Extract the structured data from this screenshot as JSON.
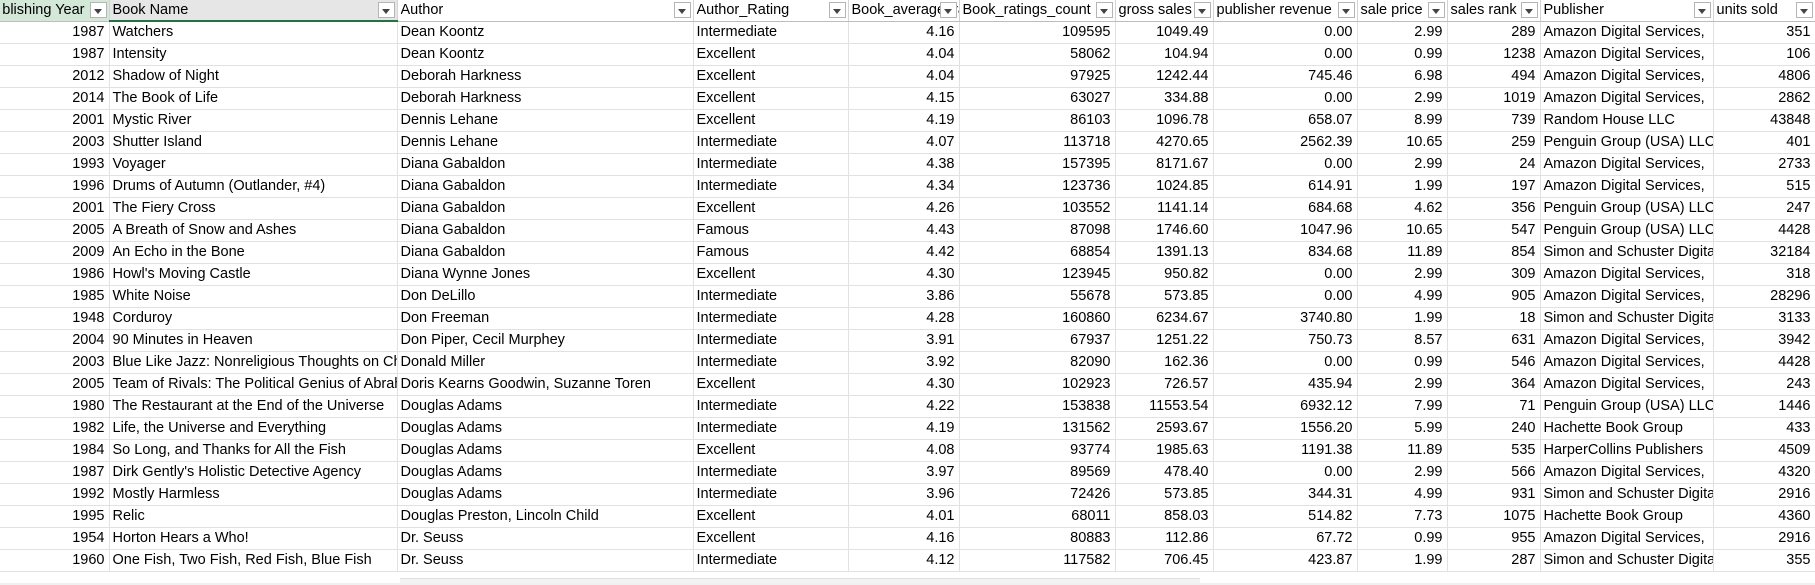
{
  "headers": [
    {
      "label": "Publishing Year",
      "align": "right",
      "selected": true
    },
    {
      "label": "Book Name",
      "align": "left",
      "selected": true,
      "active": true
    },
    {
      "label": "Author",
      "align": "left"
    },
    {
      "label": "Author_Rating",
      "align": "left"
    },
    {
      "label": "Book_average_rating",
      "align": "left"
    },
    {
      "label": "Book_ratings_count",
      "align": "left"
    },
    {
      "label": "gross sales",
      "align": "left"
    },
    {
      "label": "publisher revenue",
      "align": "left"
    },
    {
      "label": "sale price",
      "align": "left"
    },
    {
      "label": "sales rank",
      "align": "left"
    },
    {
      "label": "Publisher",
      "align": "left"
    },
    {
      "label": "units sold",
      "align": "left"
    }
  ],
  "rows": [
    [
      "1987",
      "Watchers",
      "Dean Koontz",
      "Intermediate",
      "4.16",
      "109595",
      "1049.49",
      "0.00",
      "2.99",
      "289",
      "Amazon Digital Services,",
      "351"
    ],
    [
      "1987",
      "Intensity",
      "Dean Koontz",
      "Excellent",
      "4.04",
      "58062",
      "104.94",
      "0.00",
      "0.99",
      "1238",
      "Amazon Digital Services,",
      "106"
    ],
    [
      "2012",
      "Shadow of Night",
      "Deborah Harkness",
      "Excellent",
      "4.04",
      "97925",
      "1242.44",
      "745.46",
      "6.98",
      "494",
      "Amazon Digital Services,",
      "4806"
    ],
    [
      "2014",
      "The Book of Life",
      "Deborah Harkness",
      "Excellent",
      "4.15",
      "63027",
      "334.88",
      "0.00",
      "2.99",
      "1019",
      "Amazon Digital Services,",
      "2862"
    ],
    [
      "2001",
      "Mystic River",
      "Dennis Lehane",
      "Excellent",
      "4.19",
      "86103",
      "1096.78",
      "658.07",
      "8.99",
      "739",
      "Random House LLC",
      "43848"
    ],
    [
      "2003",
      "Shutter Island",
      "Dennis Lehane",
      "Intermediate",
      "4.07",
      "113718",
      "4270.65",
      "2562.39",
      "10.65",
      "259",
      "Penguin Group (USA) LLC",
      "401"
    ],
    [
      "1993",
      "Voyager",
      "Diana Gabaldon",
      "Intermediate",
      "4.38",
      "157395",
      "8171.67",
      "0.00",
      "2.99",
      "24",
      "Amazon Digital Services,",
      "2733"
    ],
    [
      "1996",
      "Drums of Autumn (Outlander, #4)",
      "Diana Gabaldon",
      "Intermediate",
      "4.34",
      "123736",
      "1024.85",
      "614.91",
      "1.99",
      "197",
      "Amazon Digital Services,",
      "515"
    ],
    [
      "2001",
      "The Fiery Cross",
      "Diana Gabaldon",
      "Excellent",
      "4.26",
      "103552",
      "1141.14",
      "684.68",
      "4.62",
      "356",
      "Penguin Group (USA) LLC",
      "247"
    ],
    [
      "2005",
      "A Breath of Snow and Ashes",
      "Diana Gabaldon",
      "Famous",
      "4.43",
      "87098",
      "1746.60",
      "1047.96",
      "10.65",
      "547",
      "Penguin Group (USA) LLC",
      "4428"
    ],
    [
      "2009",
      "An Echo in the Bone",
      "Diana Gabaldon",
      "Famous",
      "4.42",
      "68854",
      "1391.13",
      "834.68",
      "11.89",
      "854",
      "Simon and Schuster Digital",
      "32184"
    ],
    [
      "1986",
      "Howl's Moving Castle",
      "Diana Wynne Jones",
      "Excellent",
      "4.30",
      "123945",
      "950.82",
      "0.00",
      "2.99",
      "309",
      "Amazon Digital Services,",
      "318"
    ],
    [
      "1985",
      "White Noise",
      "Don DeLillo",
      "Intermediate",
      "3.86",
      "55678",
      "573.85",
      "0.00",
      "4.99",
      "905",
      "Amazon Digital Services,",
      "28296"
    ],
    [
      "1948",
      "Corduroy",
      "Don Freeman",
      "Intermediate",
      "4.28",
      "160860",
      "6234.67",
      "3740.80",
      "1.99",
      "18",
      "Simon and Schuster Digital",
      "3133"
    ],
    [
      "2004",
      "90 Minutes in Heaven",
      "Don Piper, Cecil Murphey",
      "Intermediate",
      "3.91",
      "67937",
      "1251.22",
      "750.73",
      "8.57",
      "631",
      "Amazon Digital Services,",
      "3942"
    ],
    [
      "2003",
      "Blue Like Jazz: Nonreligious Thoughts on Christian Spirituality",
      "Donald Miller",
      "Intermediate",
      "3.92",
      "82090",
      "162.36",
      "0.00",
      "0.99",
      "546",
      "Amazon Digital Services,",
      "4428"
    ],
    [
      "2005",
      "Team of Rivals: The Political Genius of Abraham Lincoln",
      "Doris Kearns Goodwin, Suzanne Toren",
      "Excellent",
      "4.30",
      "102923",
      "726.57",
      "435.94",
      "2.99",
      "364",
      "Amazon Digital Services,",
      "243"
    ],
    [
      "1980",
      "The Restaurant at the End of the Universe",
      "Douglas Adams",
      "Intermediate",
      "4.22",
      "153838",
      "11553.54",
      "6932.12",
      "7.99",
      "71",
      "Penguin Group (USA) LLC",
      "1446"
    ],
    [
      "1982",
      "Life, the Universe and Everything",
      "Douglas Adams",
      "Intermediate",
      "4.19",
      "131562",
      "2593.67",
      "1556.20",
      "5.99",
      "240",
      "Hachette Book Group",
      "433"
    ],
    [
      "1984",
      "So Long, and Thanks for All the Fish",
      "Douglas Adams",
      "Excellent",
      "4.08",
      "93774",
      "1985.63",
      "1191.38",
      "11.89",
      "535",
      "HarperCollins Publishers",
      "4509"
    ],
    [
      "1987",
      "Dirk Gently's Holistic Detective Agency",
      "Douglas Adams",
      "Intermediate",
      "3.97",
      "89569",
      "478.40",
      "0.00",
      "2.99",
      "566",
      "Amazon Digital Services,",
      "4320"
    ],
    [
      "1992",
      "Mostly Harmless",
      "Douglas Adams",
      "Intermediate",
      "3.96",
      "72426",
      "573.85",
      "344.31",
      "4.99",
      "931",
      "Simon and Schuster Digital",
      "2916"
    ],
    [
      "1995",
      "Relic",
      "Douglas Preston, Lincoln Child",
      "Excellent",
      "4.01",
      "68011",
      "858.03",
      "514.82",
      "7.73",
      "1075",
      "Hachette Book Group",
      "4360"
    ],
    [
      "1954",
      "Horton Hears a Who!",
      "Dr. Seuss",
      "Excellent",
      "4.16",
      "80883",
      "112.86",
      "67.72",
      "0.99",
      "955",
      "Amazon Digital Services,",
      "2916"
    ],
    [
      "1960",
      "One Fish, Two Fish, Red Fish, Blue Fish",
      "Dr. Seuss",
      "Intermediate",
      "4.12",
      "117582",
      "706.45",
      "423.87",
      "1.99",
      "287",
      "Simon and Schuster Digital",
      "355"
    ]
  ],
  "num_cols": [
    0,
    4,
    5,
    6,
    7,
    8,
    9,
    11
  ]
}
